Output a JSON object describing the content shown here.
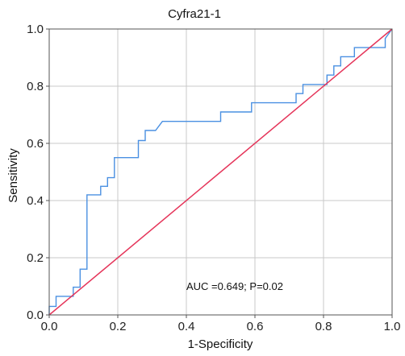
{
  "chart_data": {
    "type": "line",
    "title": "Cyfra21-1",
    "xlabel": "1-Specificity",
    "ylabel": "Sensitivity",
    "xlim": [
      0,
      1
    ],
    "ylim": [
      0,
      1
    ],
    "x_ticks": [
      0.0,
      0.2,
      0.4,
      0.6,
      0.8,
      1.0
    ],
    "y_ticks": [
      0.0,
      0.2,
      0.4,
      0.6,
      0.8,
      1.0
    ],
    "x_tick_labels": [
      "0.0",
      "0.2",
      "0.4",
      "0.6",
      "0.8",
      "1.0"
    ],
    "y_tick_labels": [
      "0.0",
      "0.2",
      "0.4",
      "0.6",
      "0.8",
      "1.0"
    ],
    "grid": true,
    "annotation": "AUC =0.649; P=0.02",
    "series": [
      {
        "color": "#4a90e2",
        "x": [
          0.0,
          0.0,
          0.02,
          0.02,
          0.07,
          0.07,
          0.09,
          0.09,
          0.11,
          0.11,
          0.15,
          0.15,
          0.17,
          0.17,
          0.19,
          0.19,
          0.26,
          0.26,
          0.28,
          0.28,
          0.31,
          0.33,
          0.5,
          0.5,
          0.59,
          0.59,
          0.72,
          0.72,
          0.74,
          0.74,
          0.81,
          0.81,
          0.83,
          0.83,
          0.85,
          0.85,
          0.89,
          0.89,
          0.98,
          0.98,
          1.0
        ],
        "y": [
          0.0,
          0.03,
          0.03,
          0.065,
          0.065,
          0.097,
          0.097,
          0.16,
          0.16,
          0.42,
          0.42,
          0.45,
          0.45,
          0.48,
          0.48,
          0.55,
          0.55,
          0.61,
          0.61,
          0.645,
          0.645,
          0.677,
          0.677,
          0.71,
          0.71,
          0.742,
          0.742,
          0.774,
          0.774,
          0.806,
          0.806,
          0.839,
          0.839,
          0.871,
          0.871,
          0.903,
          0.903,
          0.935,
          0.935,
          0.967,
          1.0
        ]
      },
      {
        "color": "#e5355a",
        "x": [
          0.0,
          1.0
        ],
        "y": [
          0.0,
          1.0
        ]
      }
    ]
  }
}
